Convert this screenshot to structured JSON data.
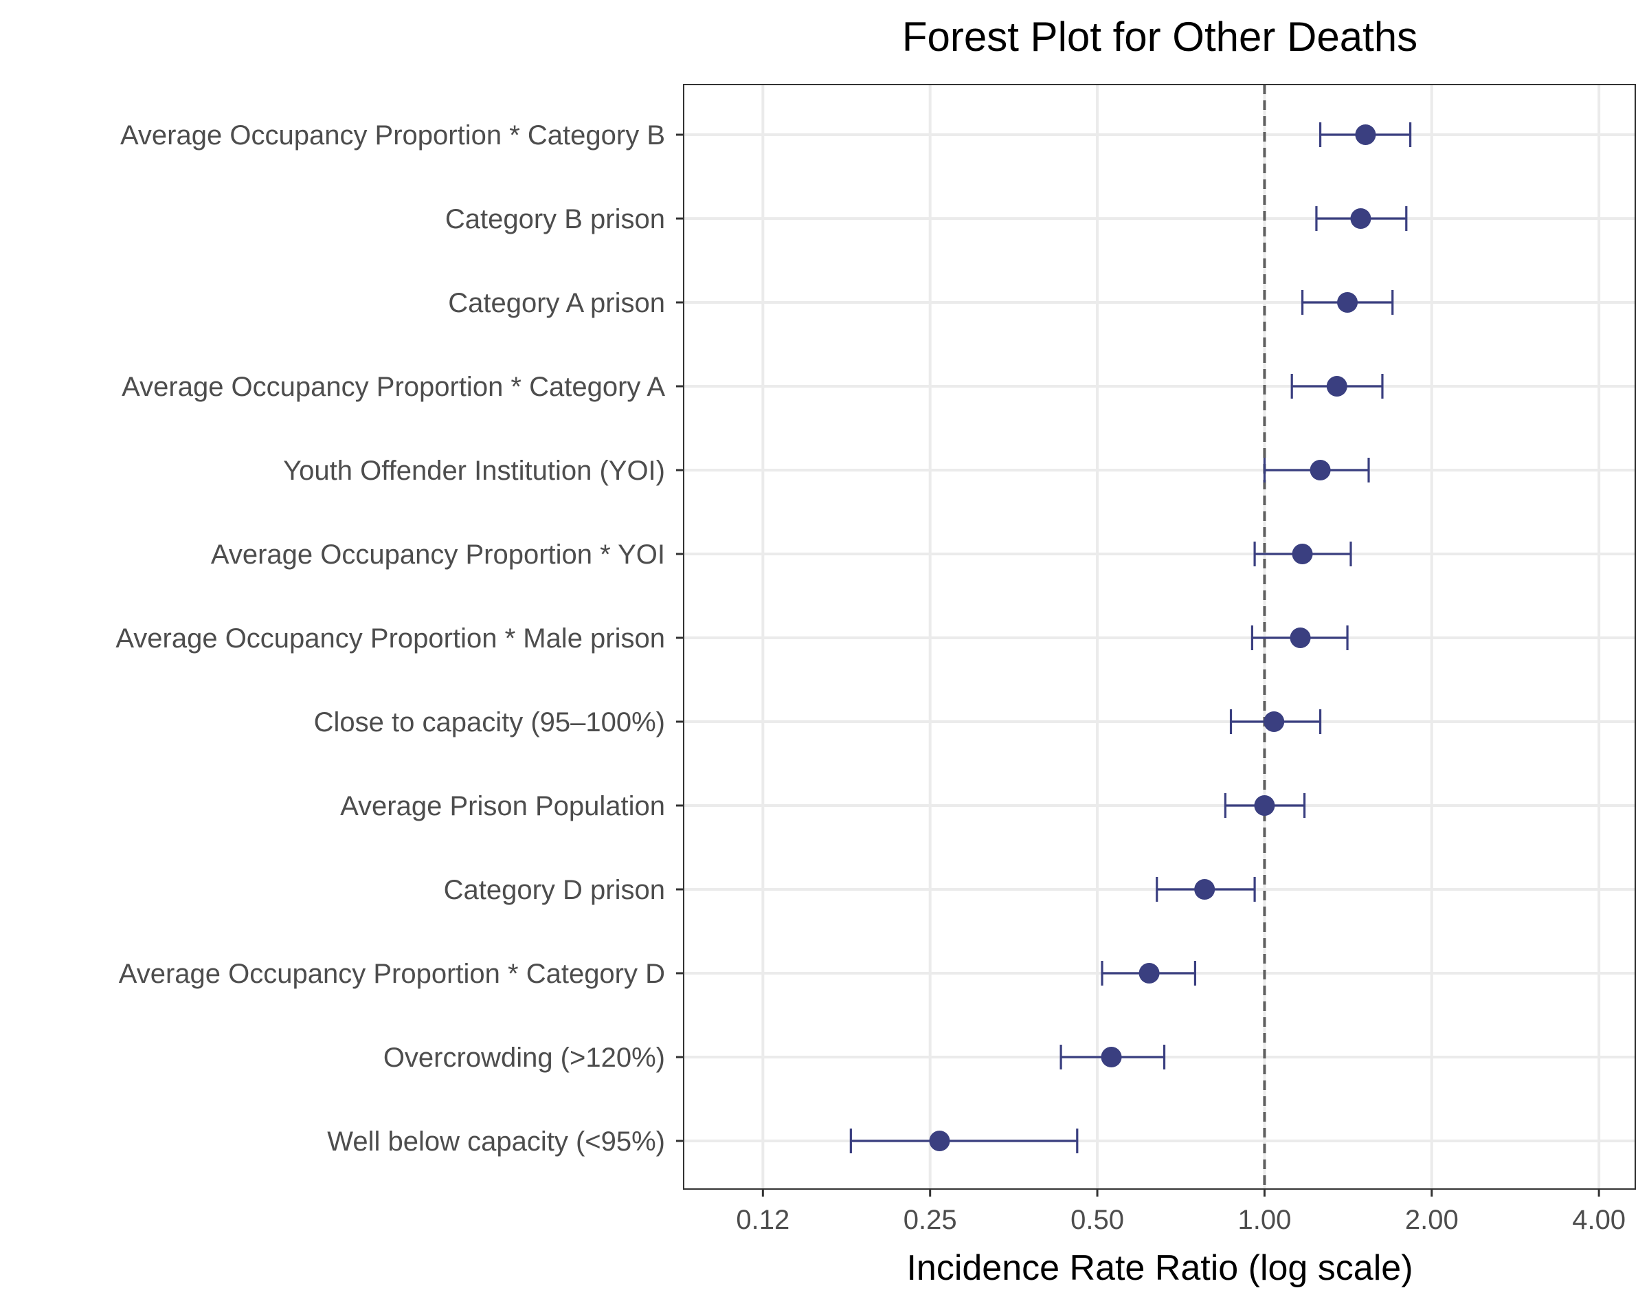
{
  "chart_data": {
    "type": "forest",
    "title": "Forest Plot for Other Deaths",
    "xlabel": "Incidence Rate Ratio (log scale)",
    "ylabel": "",
    "x_scale": "log2",
    "xlim": [
      0.09,
      4.65
    ],
    "x_ticks": [
      0.125,
      0.25,
      0.5,
      1,
      2,
      4
    ],
    "x_tick_labels": [
      "0.12",
      "0.25",
      "0.50",
      "1.00",
      "2.00",
      "4.00"
    ],
    "reference_line": 1,
    "grid": true,
    "colors": {
      "point": "#3a3f80",
      "error_bar": "#3a3f80",
      "reference": "#5f5f5f",
      "grid": "#ebebeb",
      "panel_border": "#333333"
    },
    "rows": [
      {
        "label": "Average Occupancy Proportion * Category B",
        "estimate": 1.52,
        "lower": 1.26,
        "upper": 1.83
      },
      {
        "label": "Category B prison",
        "estimate": 1.49,
        "lower": 1.24,
        "upper": 1.8
      },
      {
        "label": "Category A prison",
        "estimate": 1.41,
        "lower": 1.17,
        "upper": 1.7
      },
      {
        "label": "Average Occupancy Proportion * Category A",
        "estimate": 1.35,
        "lower": 1.12,
        "upper": 1.63
      },
      {
        "label": "Youth Offender Institution (YOI)",
        "estimate": 1.26,
        "lower": 1.0,
        "upper": 1.54
      },
      {
        "label": "Average Occupancy Proportion * YOI",
        "estimate": 1.17,
        "lower": 0.96,
        "upper": 1.43
      },
      {
        "label": "Average Occupancy Proportion * Male prison",
        "estimate": 1.16,
        "lower": 0.95,
        "upper": 1.41
      },
      {
        "label": "Close to capacity (95–100%)",
        "estimate": 1.04,
        "lower": 0.87,
        "upper": 1.26
      },
      {
        "label": "Average Prison Population",
        "estimate": 1.0,
        "lower": 0.85,
        "upper": 1.18
      },
      {
        "label": "Category D prison",
        "estimate": 0.78,
        "lower": 0.64,
        "upper": 0.96
      },
      {
        "label": "Average Occupancy Proportion * Category D",
        "estimate": 0.62,
        "lower": 0.51,
        "upper": 0.75
      },
      {
        "label": "Overcrowding (>120%)",
        "estimate": 0.53,
        "lower": 0.43,
        "upper": 0.66
      },
      {
        "label": "Well below capacity (<95%)",
        "estimate": 0.26,
        "lower": 0.18,
        "upper": 0.46
      }
    ]
  }
}
